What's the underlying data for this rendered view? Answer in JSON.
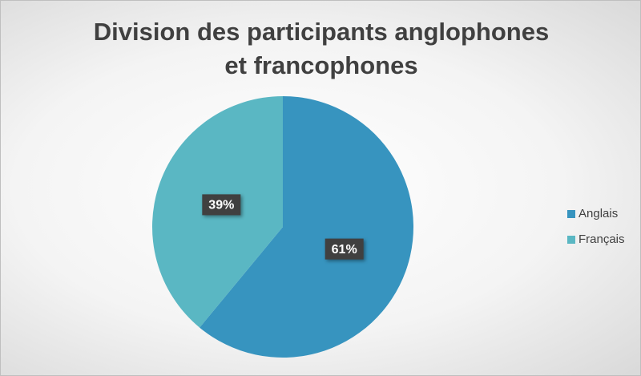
{
  "chart_data": {
    "type": "pie",
    "title": "Division des participants anglophones et francophones",
    "categories": [
      "Anglais",
      "Français"
    ],
    "values": [
      61,
      39
    ],
    "value_labels": [
      "61%",
      "39%"
    ],
    "colors": [
      "#3794bf",
      "#5ab7c3"
    ],
    "legend": "right"
  }
}
